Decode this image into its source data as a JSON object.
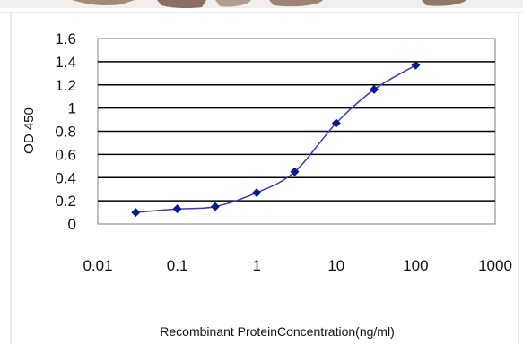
{
  "chart_data": {
    "type": "line",
    "xlabel": "Recombinant ProteinConcentration(ng/ml)",
    "ylabel": "OD 450",
    "xscale": "log",
    "xlim": [
      0.01,
      1000
    ],
    "ylim": [
      0,
      1.6
    ],
    "grid": "horizontal",
    "x_ticks": [
      "0.01",
      "0.1",
      "1",
      "10",
      "100",
      "1000"
    ],
    "y_ticks": [
      "0",
      "0.2",
      "0.4",
      "0.6",
      "0.8",
      "1",
      "1.2",
      "1.4",
      "1.6"
    ],
    "series": [
      {
        "x": [
          0.03,
          0.1,
          0.3,
          1,
          3,
          10,
          30,
          100
        ],
        "y": [
          0.1,
          0.13,
          0.15,
          0.27,
          0.45,
          0.87,
          1.16,
          1.37
        ]
      }
    ],
    "colors": {
      "line": "#3a3ab8",
      "marker": "#0b1a8a",
      "plot_bg": "#ffffff",
      "grid": "#000000",
      "frame": "#c0c0c0"
    }
  }
}
